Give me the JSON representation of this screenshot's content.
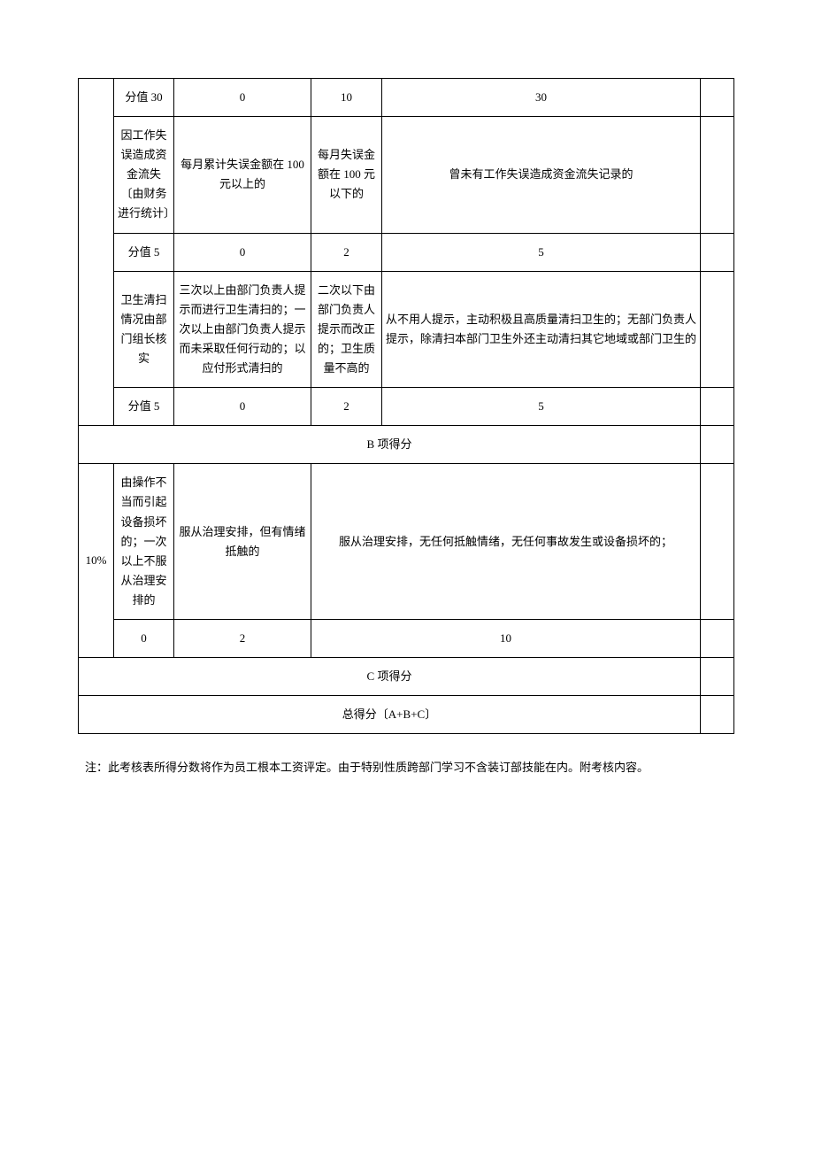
{
  "table": {
    "row1": {
      "desc": "分值 30",
      "lvl1": "0",
      "lvl2": "10",
      "lvl3": "30",
      "score": ""
    },
    "row2": {
      "desc": "因工作失误造成资金流失〔由财务进行统计〕",
      "lvl1": "每月累计失误金额在 100 元以上的",
      "lvl2": "每月失误金额在 100 元以下的",
      "lvl3": "曾未有工作失误造成资金流失记录的",
      "score": ""
    },
    "row3": {
      "desc": "分值 5",
      "lvl1": "0",
      "lvl2": "2",
      "lvl3": "5",
      "score": ""
    },
    "row4": {
      "desc": "卫生清扫情况由部门组长核实",
      "lvl1": "三次以上由部门负责人提示而进行卫生清扫的；一次以上由部门负责人提示而未采取任何行动的；以应付形式清扫的",
      "lvl2": "二次以下由部门负责人提示而改正的；卫生质量不高的",
      "lvl3": "从不用人提示，主动积极且高质量清扫卫生的；无部门负责人提示，除清扫本部门卫生外还主动清扫其它地域或部门卫生的",
      "score": ""
    },
    "row5": {
      "desc": "分值 5",
      "lvl1": "0",
      "lvl2": "2",
      "lvl3": "5",
      "score": ""
    },
    "rowB": {
      "text": "B 项得分",
      "score": ""
    },
    "rowC1": {
      "percent": "10%",
      "desc": "由操作不当而引起设备损坏的；一次以上不服从治理安排的",
      "lvl1": "服从治理安排，但有情绪抵触的",
      "lvl3": "服从治理安排，无任何抵触情绪，无任何事故发生或设备损坏的；",
      "score": ""
    },
    "rowC2": {
      "desc": "0",
      "lvl1": "2",
      "lvl3": "10",
      "score": ""
    },
    "rowCscore": {
      "text": "C 项得分",
      "score": ""
    },
    "rowTotal": {
      "text": "总得分〔A+B+C〕",
      "score": ""
    }
  },
  "note": "注：此考核表所得分数将作为员工根本工资评定。由于特别性质跨部门学习不含装订部技能在内。附考核内容。"
}
